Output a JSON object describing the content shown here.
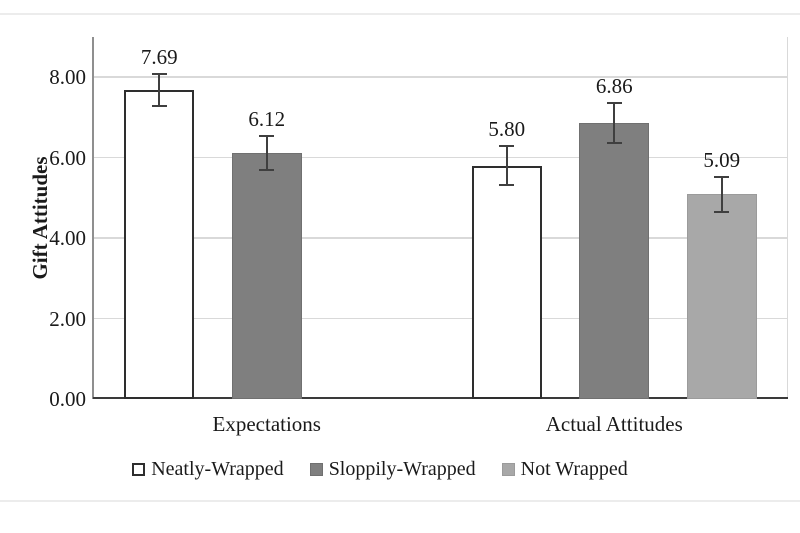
{
  "page": {
    "divider_color": "#ececec"
  },
  "chart_data": {
    "type": "bar",
    "title": "",
    "ylabel": "Gift Attitudes",
    "xlabel": "",
    "ylim": [
      0,
      9
    ],
    "yticks": [
      0,
      2,
      4,
      6,
      8
    ],
    "ytick_labels": [
      "0.00",
      "2.00",
      "4.00",
      "6.00",
      "8.00"
    ],
    "categories": [
      "Expectations",
      "Actual Attitudes"
    ],
    "series": [
      {
        "name": "Neatly-Wrapped",
        "values": [
          7.69,
          5.8
        ],
        "errors": [
          0.4,
          0.48
        ],
        "fill": "#ffffff",
        "border": "#2e2e2e",
        "border_px": 2.5
      },
      {
        "name": "Sloppily-Wrapped",
        "values": [
          6.12,
          6.86
        ],
        "errors": [
          0.43,
          0.5
        ],
        "fill": "#7f7f7f",
        "border": "#707070",
        "border_px": 1
      },
      {
        "name": "Not Wrapped",
        "values": [
          null,
          5.09
        ],
        "errors": [
          null,
          0.44
        ],
        "fill": "#a8a8a8",
        "border": "#9b9b9b",
        "border_px": 1
      }
    ],
    "value_label_decimals": 2,
    "grid": "horizontal-only",
    "gridline_color": "#d9d9d9",
    "axis_line_color": "#8f8f8f",
    "baseline_color": "#3a3a3a",
    "error_bar_color": "#3f3f3f",
    "text_color": "#1a1a1a",
    "legend_position": "bottom"
  }
}
